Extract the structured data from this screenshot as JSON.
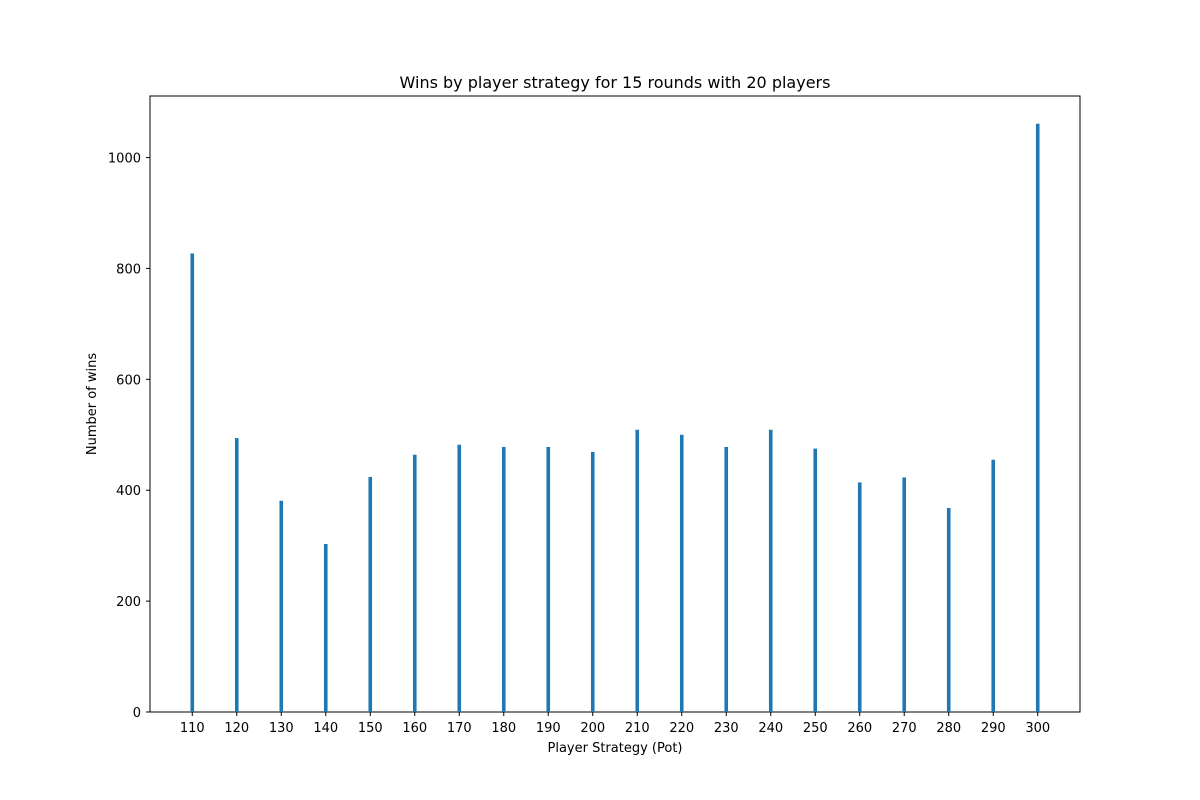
{
  "chart_data": {
    "type": "bar",
    "title": "Wins by player strategy for 15 rounds with 20 players",
    "xlabel": "Player Strategy (Pot)",
    "ylabel": "Number of wins",
    "categories": [
      "110",
      "120",
      "130",
      "140",
      "150",
      "160",
      "170",
      "180",
      "190",
      "200",
      "210",
      "220",
      "230",
      "240",
      "250",
      "260",
      "270",
      "280",
      "290",
      "300"
    ],
    "values": [
      827,
      494,
      381,
      303,
      424,
      464,
      482,
      478,
      478,
      469,
      509,
      500,
      478,
      509,
      475,
      414,
      423,
      368,
      455,
      1061
    ],
    "ylim": [
      0,
      1111
    ],
    "yticks": [
      0,
      200,
      400,
      600,
      800,
      1000
    ],
    "bar_color": "#1f77b4",
    "grid": false,
    "legend": "none"
  }
}
